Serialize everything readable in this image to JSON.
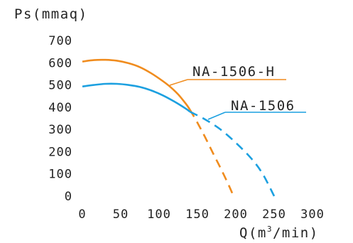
{
  "chart_data": {
    "type": "line",
    "title": "",
    "ylabel": "Ps(mmaq)",
    "xlabel": "Q(m³/min)",
    "xlabel_parts": {
      "base": "Q(m",
      "sup": "3",
      "rest": "/min)"
    },
    "xlim": [
      0,
      300
    ],
    "ylim": [
      0,
      700
    ],
    "x_ticks": [
      "0",
      "50",
      "100",
      "150",
      "200",
      "250",
      "300"
    ],
    "y_ticks": [
      "700",
      "600",
      "500",
      "400",
      "300",
      "200",
      "100",
      "0"
    ],
    "grid": false,
    "series": [
      {
        "name": "NA-1506-H",
        "color": "#F08C1E",
        "solid": [
          [
            0,
            605
          ],
          [
            15,
            612
          ],
          [
            30,
            613
          ],
          [
            45,
            609
          ],
          [
            60,
            598
          ],
          [
            75,
            580
          ],
          [
            90,
            552
          ],
          [
            105,
            517
          ],
          [
            115,
            490
          ],
          [
            125,
            457
          ],
          [
            135,
            415
          ],
          [
            140,
            390
          ]
        ],
        "dashed": [
          [
            140,
            390
          ],
          [
            150,
            330
          ],
          [
            160,
            265
          ],
          [
            170,
            195
          ],
          [
            180,
            127
          ],
          [
            190,
            55
          ],
          [
            197,
            0
          ]
        ]
      },
      {
        "name": "NA-1506",
        "color": "#1CA0E0",
        "solid": [
          [
            0,
            493
          ],
          [
            15,
            500
          ],
          [
            30,
            505
          ],
          [
            45,
            505
          ],
          [
            60,
            500
          ],
          [
            75,
            491
          ],
          [
            90,
            475
          ],
          [
            105,
            453
          ],
          [
            120,
            425
          ],
          [
            135,
            393
          ],
          [
            140,
            380
          ]
        ],
        "dashed": [
          [
            140,
            380
          ],
          [
            160,
            345
          ],
          [
            180,
            300
          ],
          [
            200,
            240
          ],
          [
            220,
            170
          ],
          [
            235,
            100
          ],
          [
            250,
            0
          ]
        ]
      }
    ],
    "annotations": [
      {
        "text": "NA-1506-H",
        "series": 0
      },
      {
        "text": "NA-1506",
        "series": 1
      }
    ]
  }
}
